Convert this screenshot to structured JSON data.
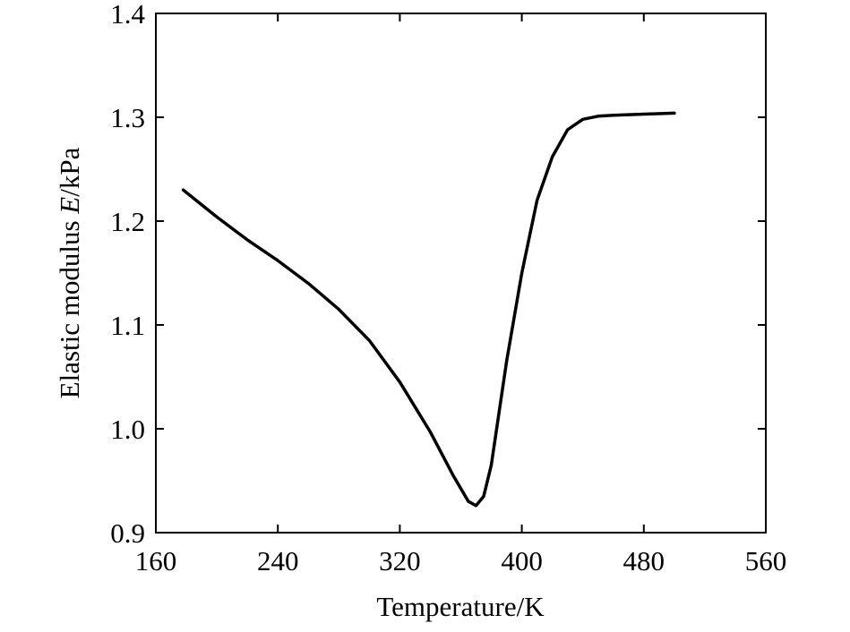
{
  "chart_data": {
    "type": "line",
    "title": "",
    "xlabel": "Temperature/K",
    "ylabel": {
      "prefix": "Elastic modulus ",
      "symbol": "E",
      "suffix": "/kPa"
    },
    "xlim": [
      160,
      560
    ],
    "ylim": [
      0.9,
      1.4
    ],
    "xticks": [
      "160",
      "240",
      "320",
      "400",
      "480",
      "560"
    ],
    "yticks": [
      "0.9",
      "1.0",
      "1.1",
      "1.2",
      "1.3",
      "1.4"
    ],
    "grid": false,
    "legend": "none",
    "series": [
      {
        "color": "#000000",
        "x": [
          178,
          200,
          220,
          240,
          260,
          280,
          300,
          320,
          340,
          355,
          365,
          370,
          375,
          380,
          390,
          400,
          410,
          420,
          430,
          440,
          450,
          460,
          480,
          500
        ],
        "y": [
          1.23,
          1.204,
          1.182,
          1.162,
          1.14,
          1.115,
          1.085,
          1.045,
          0.997,
          0.955,
          0.93,
          0.926,
          0.935,
          0.965,
          1.065,
          1.15,
          1.22,
          1.262,
          1.288,
          1.298,
          1.301,
          1.302,
          1.303,
          1.304
        ]
      }
    ]
  }
}
